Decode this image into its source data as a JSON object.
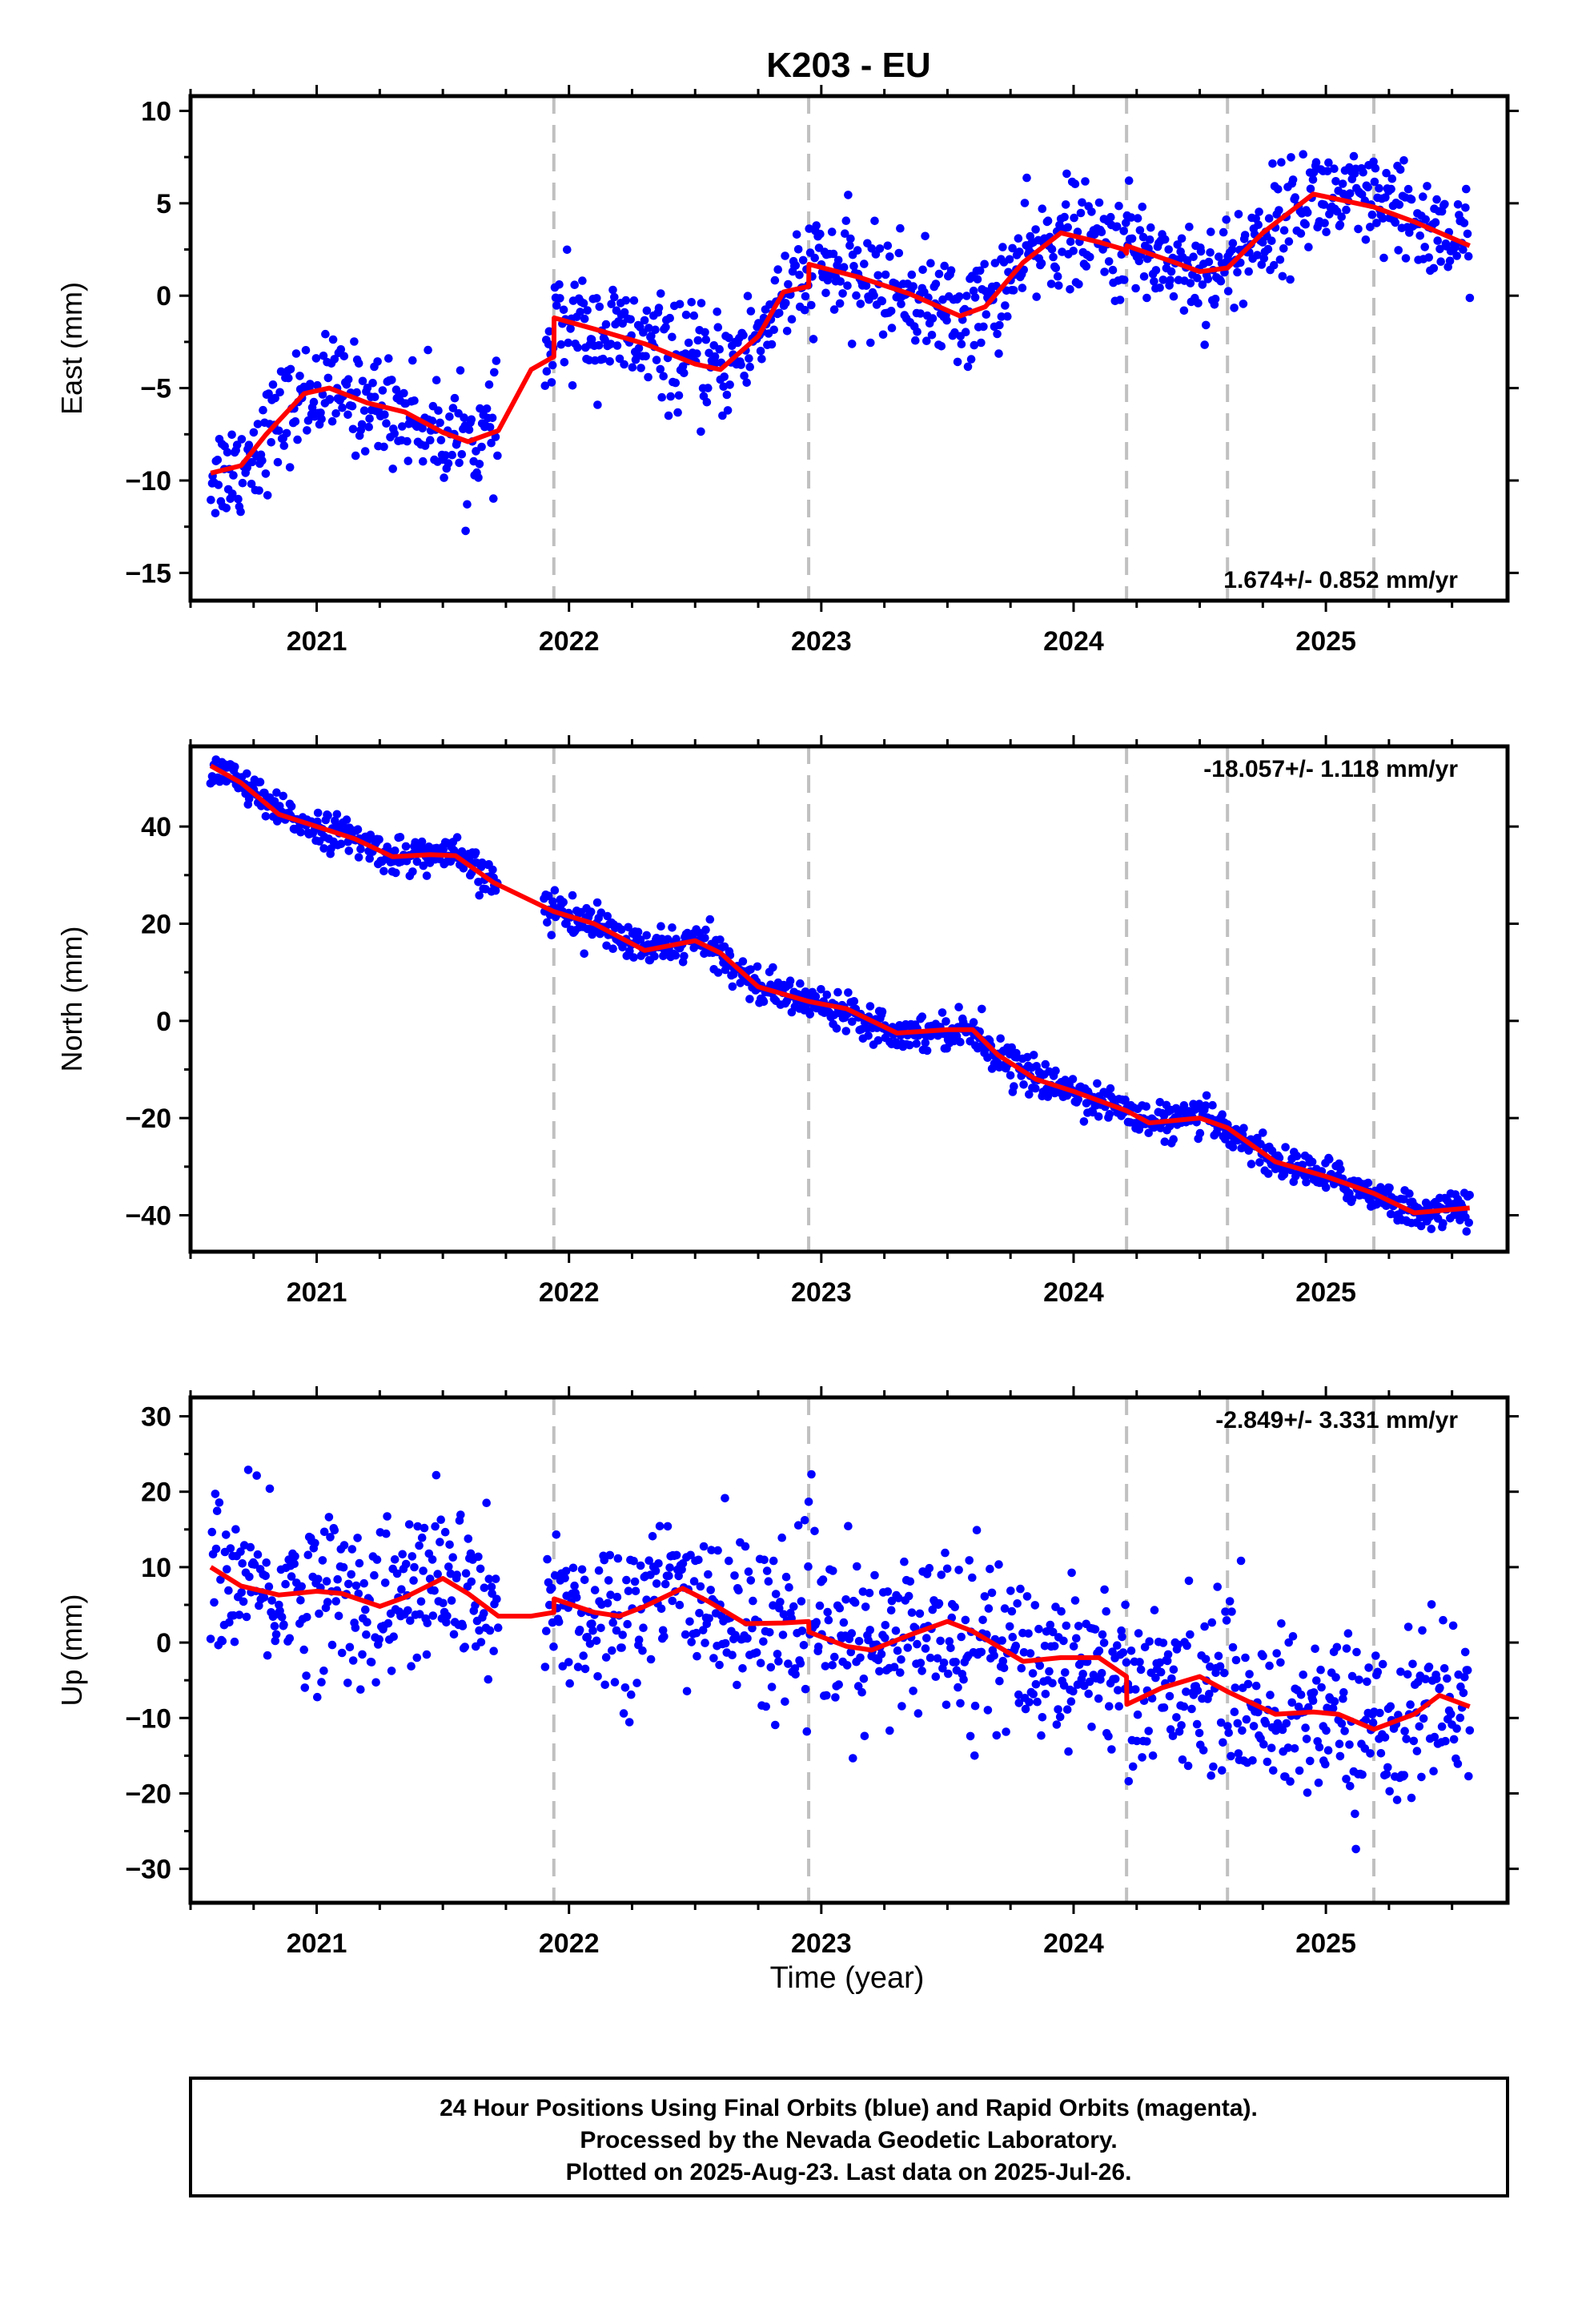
{
  "title": "K203 - EU",
  "xlabel": "Time (year)",
  "footer": [
    "24 Hour Positions Using Final Orbits (blue) and Rapid Orbits (magenta).",
    "Processed by the Nevada Geodetic Laboratory.",
    "Plotted on 2025-Aug-23. Last data on 2025-Jul-26."
  ],
  "colors": {
    "points": "#0000ff",
    "model": "#ff0000",
    "steps": "#c0c0c0",
    "frame": "#000000"
  },
  "chart_data": [
    {
      "type": "scatter",
      "ylabel": "East (mm)",
      "rate_label": "1.674+/- 0.852 mm/yr",
      "xlim": [
        2020.5,
        2025.72
      ],
      "ylim": [
        -16.5,
        10.8
      ],
      "x_ticks": [
        2021,
        2022,
        2023,
        2024,
        2025
      ],
      "y_ticks": [
        -15,
        -10,
        -5,
        0,
        5,
        10
      ],
      "step_lines": [
        2021.94,
        2022.95,
        2024.21,
        2024.61,
        2025.19
      ],
      "data_span": [
        2020.58,
        2025.57
      ],
      "gaps": [
        [
          2021.72,
          2021.9
        ]
      ],
      "noise_sd": 1.4,
      "model": [
        [
          2020.58,
          -9.6
        ],
        [
          2020.7,
          -9.2
        ],
        [
          2020.8,
          -7.5
        ],
        [
          2020.95,
          -5.3
        ],
        [
          2021.05,
          -5.0
        ],
        [
          2021.2,
          -5.8
        ],
        [
          2021.35,
          -6.3
        ],
        [
          2021.5,
          -7.4
        ],
        [
          2021.6,
          -7.9
        ],
        [
          2021.72,
          -7.3
        ],
        [
          2021.85,
          -4.0
        ],
        [
          2021.94,
          -3.3
        ],
        [
          2021.941,
          -1.2
        ],
        [
          2022.1,
          -1.8
        ],
        [
          2022.3,
          -2.6
        ],
        [
          2022.5,
          -3.7
        ],
        [
          2022.6,
          -4.0
        ],
        [
          2022.75,
          -2.2
        ],
        [
          2022.85,
          0.2
        ],
        [
          2022.95,
          0.5
        ],
        [
          2022.951,
          1.7
        ],
        [
          2023.15,
          1.0
        ],
        [
          2023.35,
          0.1
        ],
        [
          2023.55,
          -1.1
        ],
        [
          2023.65,
          -0.6
        ],
        [
          2023.8,
          1.8
        ],
        [
          2023.95,
          3.4
        ],
        [
          2024.1,
          2.9
        ],
        [
          2024.2,
          2.5
        ],
        [
          2024.21,
          2.3
        ],
        [
          2024.211,
          2.7
        ],
        [
          2024.4,
          1.8
        ],
        [
          2024.5,
          1.3
        ],
        [
          2024.61,
          1.5
        ],
        [
          2024.75,
          3.4
        ],
        [
          2024.95,
          5.5
        ],
        [
          2025.19,
          4.8
        ],
        [
          2025.35,
          4.0
        ],
        [
          2025.57,
          2.7
        ]
      ]
    },
    {
      "type": "scatter",
      "ylabel": "North (mm)",
      "rate_label": "-18.057+/- 1.118 mm/yr",
      "xlim": [
        2020.5,
        2025.72
      ],
      "ylim": [
        -47.5,
        56.5
      ],
      "x_ticks": [
        2021,
        2022,
        2023,
        2024,
        2025
      ],
      "y_ticks": [
        -40,
        -20,
        0,
        20,
        40
      ],
      "step_lines": [
        2021.94,
        2022.95,
        2024.21,
        2024.61,
        2025.19
      ],
      "data_span": [
        2020.58,
        2025.57
      ],
      "gaps": [
        [
          2021.72,
          2021.9
        ]
      ],
      "noise_sd": 1.8,
      "model": [
        [
          2020.58,
          52.5
        ],
        [
          2020.7,
          49.0
        ],
        [
          2020.85,
          42.5
        ],
        [
          2021.0,
          40.0
        ],
        [
          2021.15,
          37.5
        ],
        [
          2021.3,
          33.8
        ],
        [
          2021.45,
          34.2
        ],
        [
          2021.55,
          34.0
        ],
        [
          2021.7,
          28.5
        ],
        [
          2021.94,
          22.5
        ],
        [
          2022.1,
          20.0
        ],
        [
          2022.3,
          14.5
        ],
        [
          2022.5,
          16.5
        ],
        [
          2022.6,
          14.0
        ],
        [
          2022.75,
          7.0
        ],
        [
          2022.95,
          4.0
        ],
        [
          2023.1,
          2.5
        ],
        [
          2023.3,
          -2.5
        ],
        [
          2023.5,
          -1.8
        ],
        [
          2023.6,
          -1.8
        ],
        [
          2023.7,
          -7.0
        ],
        [
          2023.85,
          -12.0
        ],
        [
          2024.0,
          -14.5
        ],
        [
          2024.21,
          -18.5
        ],
        [
          2024.3,
          -21.0
        ],
        [
          2024.5,
          -20.0
        ],
        [
          2024.61,
          -22.0
        ],
        [
          2024.8,
          -29.0
        ],
        [
          2025.0,
          -32.0
        ],
        [
          2025.19,
          -35.5
        ],
        [
          2025.35,
          -39.5
        ],
        [
          2025.57,
          -38.5
        ]
      ]
    },
    {
      "type": "scatter",
      "ylabel": "Up (mm)",
      "rate_label": "-2.849+/- 3.331 mm/yr",
      "xlim": [
        2020.5,
        2025.72
      ],
      "ylim": [
        -34.5,
        32.5
      ],
      "x_ticks": [
        2021,
        2022,
        2023,
        2024,
        2025
      ],
      "y_ticks": [
        -30,
        -20,
        -10,
        0,
        10,
        20,
        30
      ],
      "step_lines": [
        2021.94,
        2022.95,
        2024.21,
        2024.61,
        2025.19
      ],
      "data_span": [
        2020.58,
        2025.57
      ],
      "gaps": [
        [
          2021.72,
          2021.9
        ]
      ],
      "noise_sd": 5.5,
      "model": [
        [
          2020.58,
          10.0
        ],
        [
          2020.7,
          7.5
        ],
        [
          2020.85,
          6.3
        ],
        [
          2021.0,
          6.8
        ],
        [
          2021.1,
          6.5
        ],
        [
          2021.25,
          4.8
        ],
        [
          2021.35,
          6.0
        ],
        [
          2021.5,
          8.5
        ],
        [
          2021.6,
          6.5
        ],
        [
          2021.72,
          3.5
        ],
        [
          2021.85,
          3.5
        ],
        [
          2021.94,
          4.0
        ],
        [
          2021.941,
          5.8
        ],
        [
          2022.1,
          4.0
        ],
        [
          2022.2,
          3.5
        ],
        [
          2022.3,
          4.8
        ],
        [
          2022.45,
          7.2
        ],
        [
          2022.55,
          5.5
        ],
        [
          2022.7,
          2.5
        ],
        [
          2022.85,
          2.6
        ],
        [
          2022.95,
          2.8
        ],
        [
          2022.951,
          1.4
        ],
        [
          2023.1,
          -0.5
        ],
        [
          2023.2,
          -1.0
        ],
        [
          2023.35,
          1.0
        ],
        [
          2023.5,
          2.8
        ],
        [
          2023.6,
          1.5
        ],
        [
          2023.8,
          -2.5
        ],
        [
          2023.95,
          -2.0
        ],
        [
          2024.1,
          -2.0
        ],
        [
          2024.21,
          -4.5
        ],
        [
          2024.211,
          -8.2
        ],
        [
          2024.35,
          -6.0
        ],
        [
          2024.5,
          -4.5
        ],
        [
          2024.61,
          -6.5
        ],
        [
          2024.8,
          -9.5
        ],
        [
          2024.95,
          -9.2
        ],
        [
          2025.05,
          -9.5
        ],
        [
          2025.19,
          -11.5
        ],
        [
          2025.35,
          -9.5
        ],
        [
          2025.45,
          -7.0
        ],
        [
          2025.57,
          -8.5
        ]
      ]
    }
  ]
}
